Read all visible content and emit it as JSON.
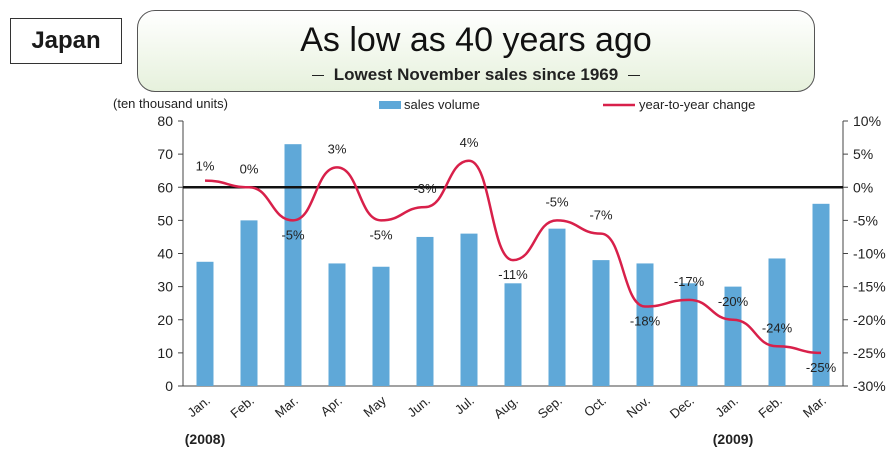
{
  "header": {
    "country": "Japan",
    "title": "As low as 40 years ago",
    "subtitle": "Lowest November sales since 1969"
  },
  "chart_data": {
    "type": "bar+line",
    "unit_label": "(ten thousand units)",
    "categories": [
      "Jan.",
      "Feb.",
      "Mar.",
      "Apr.",
      "May",
      "Jun.",
      "Jul.",
      "Aug.",
      "Sep.",
      "Oct.",
      "Nov.",
      "Dec.",
      "Jan.",
      "Feb.",
      "Mar."
    ],
    "year_labels": [
      {
        "category_index": 0,
        "text": "(2008)"
      },
      {
        "category_index": 12,
        "text": "(2009)"
      }
    ],
    "series": [
      {
        "name": "sales volume",
        "type": "bar",
        "axis": "left",
        "color": "#5fa8d8",
        "values": [
          37.5,
          50,
          73,
          37,
          36,
          45,
          46,
          31,
          47.5,
          38,
          37,
          31,
          30,
          38.5,
          55
        ]
      },
      {
        "name": "year-to-year change",
        "type": "line",
        "axis": "right",
        "color": "#d8204a",
        "values": [
          1,
          0,
          -5,
          3,
          -5,
          -3,
          4,
          -11,
          -5,
          -7,
          -18,
          -17,
          -20,
          -24,
          -25
        ],
        "labels": [
          "1%",
          "0%",
          "-5%",
          "3%",
          "-5%",
          "-3%",
          "4%",
          "-11%",
          "-5%",
          "-7%",
          "-18%",
          "-17%",
          "-20%",
          "-24%",
          "-25%"
        ]
      }
    ],
    "y_left": {
      "min": 0,
      "max": 80,
      "ticks": [
        0,
        10,
        20,
        30,
        40,
        50,
        60,
        70,
        80
      ]
    },
    "y_right": {
      "min": -30,
      "max": 10,
      "ticks": [
        10,
        5,
        0,
        -5,
        -10,
        -15,
        -20,
        -25,
        -30
      ],
      "tick_labels": [
        "10%",
        "5%",
        "0%",
        "-5%",
        "-10%",
        "-15%",
        "-20%",
        "-25%",
        "-30%"
      ]
    },
    "reference_line": {
      "axis": "right",
      "value": 0,
      "color": "#111111"
    },
    "legend_position": "top"
  }
}
